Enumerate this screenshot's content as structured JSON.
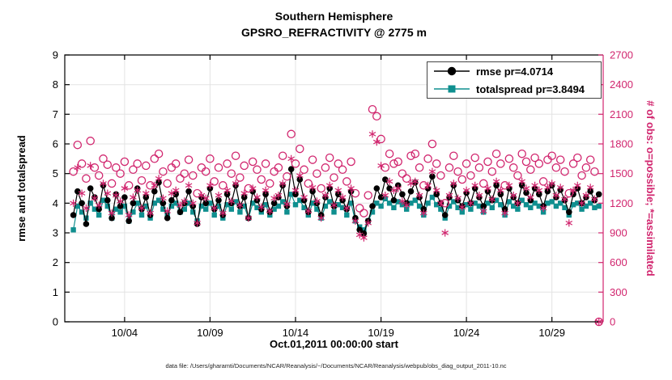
{
  "footer": {
    "text": "data file: /Users/gharamti/Documents/NCAR/Reanalysis/~/Documents/NCAR/Reanalysis/webpub/obs_diag_output_2011-10.nc"
  },
  "chart_data": {
    "type": "scatter",
    "title": "Southern Hemisphere",
    "subtitle": "GPSRO_REFRACTIVITY @ 2775 m",
    "xlabel": "Oct.01,2011 00:00:00 start",
    "ylabel_left": "rmse and totalspread",
    "ylabel_right": "# of obs: o=possible; *=assimilated",
    "grid": true,
    "legend_position": "top-right-inside",
    "x_min_day": 0.5,
    "x_max_day": 32,
    "x_ticks": [
      {
        "day": 4,
        "label": "10/04"
      },
      {
        "day": 9,
        "label": "10/09"
      },
      {
        "day": 14,
        "label": "10/14"
      },
      {
        "day": 19,
        "label": "10/19"
      },
      {
        "day": 24,
        "label": "10/24"
      },
      {
        "day": 29,
        "label": "10/29"
      }
    ],
    "yleft": {
      "min": 0,
      "max": 9,
      "ticks": [
        0,
        1,
        2,
        3,
        4,
        5,
        6,
        7,
        8,
        9
      ]
    },
    "yright": {
      "min": 0,
      "max": 2700,
      "ticks": [
        0,
        300,
        600,
        900,
        1200,
        1500,
        1800,
        2100,
        2400,
        2700
      ]
    },
    "colors": {
      "rmse": "#000000",
      "totalspread": "#0f8f8f",
      "obs": "#d1256e",
      "grid": "#e3e3e3",
      "axis": "#000000"
    },
    "legend": [
      {
        "label": "rmse pr=4.0714",
        "marker": "filled-circle"
      },
      {
        "label": "totalspread pr=3.8494",
        "marker": "filled-square"
      }
    ],
    "series": {
      "t_start": 1.0,
      "t_step": 0.25,
      "rmse": [
        3.6,
        4.4,
        4.0,
        3.3,
        4.5,
        4.2,
        3.8,
        4.6,
        4.1,
        3.5,
        4.3,
        3.9,
        4.2,
        3.4,
        4.0,
        4.5,
        3.8,
        4.2,
        3.6,
        4.4,
        4.7,
        4.0,
        3.5,
        4.1,
        4.3,
        3.7,
        4.0,
        4.4,
        3.9,
        3.3,
        4.2,
        4.0,
        4.5,
        3.8,
        4.1,
        3.6,
        4.3,
        4.0,
        4.6,
        3.9,
        4.2,
        3.5,
        4.4,
        4.1,
        3.8,
        4.3,
        3.7,
        4.0,
        4.2,
        4.6,
        3.9,
        5.15,
        4.3,
        4.8,
        4.1,
        3.7,
        4.4,
        4.0,
        3.6,
        4.2,
        4.5,
        3.9,
        4.3,
        4.1,
        3.8,
        4.4,
        3.5,
        3.1,
        2.98,
        3.4,
        3.9,
        4.5,
        4.2,
        4.8,
        4.5,
        4.1,
        4.6,
        4.3,
        4.0,
        4.4,
        4.7,
        4.2,
        3.8,
        4.5,
        4.9,
        4.3,
        4.0,
        3.6,
        4.2,
        4.6,
        4.1,
        3.9,
        4.35,
        4.0,
        4.5,
        4.2,
        3.9,
        4.4,
        4.1,
        4.6,
        4.3,
        3.8,
        4.5,
        4.2,
        4.0,
        4.6,
        4.35,
        4.1,
        4.5,
        4.3,
        3.9,
        4.4,
        4.6,
        4.2,
        4.45,
        4.1,
        3.7,
        4.3,
        4.5,
        4.0,
        4.2,
        4.4,
        4.1,
        4.3
      ],
      "totalspread": [
        3.1,
        3.9,
        3.7,
        3.5,
        4.0,
        3.8,
        3.6,
        4.1,
        3.9,
        3.5,
        3.8,
        3.7,
        3.9,
        3.4,
        3.7,
        4.0,
        3.6,
        3.9,
        3.5,
        4.0,
        4.1,
        3.8,
        3.6,
        3.9,
        4.0,
        3.7,
        3.8,
        4.0,
        3.7,
        3.4,
        3.9,
        3.8,
        4.0,
        3.6,
        3.9,
        3.5,
        3.95,
        3.8,
        4.05,
        3.7,
        3.9,
        3.5,
        4.0,
        3.85,
        3.7,
        3.95,
        3.6,
        3.8,
        3.9,
        4.05,
        3.7,
        4.3,
        3.95,
        4.1,
        3.85,
        3.6,
        4.0,
        3.8,
        3.5,
        3.9,
        4.05,
        3.7,
        3.95,
        3.85,
        3.6,
        4.0,
        3.4,
        3.2,
        3.1,
        3.4,
        3.7,
        4.0,
        3.9,
        4.15,
        4.0,
        3.85,
        4.05,
        3.95,
        3.8,
        4.0,
        4.1,
        3.9,
        3.6,
        4.0,
        4.2,
        3.95,
        3.8,
        3.5,
        3.9,
        4.05,
        3.85,
        3.7,
        3.95,
        3.8,
        4.0,
        3.9,
        3.7,
        4.0,
        3.85,
        4.1,
        3.95,
        3.6,
        4.05,
        3.9,
        3.8,
        4.1,
        3.95,
        3.85,
        4.0,
        3.9,
        3.7,
        4.0,
        4.05,
        3.9,
        4.0,
        3.85,
        3.6,
        3.95,
        4.0,
        3.8,
        3.9,
        4.0,
        3.85,
        3.9
      ],
      "possible": [
        1520,
        1790,
        1600,
        1450,
        1830,
        1560,
        1480,
        1650,
        1590,
        1400,
        1560,
        1500,
        1620,
        1380,
        1540,
        1600,
        1430,
        1580,
        1380,
        1650,
        1700,
        1520,
        1400,
        1560,
        1600,
        1450,
        1500,
        1640,
        1480,
        1300,
        1560,
        1520,
        1650,
        1420,
        1560,
        1380,
        1600,
        1500,
        1680,
        1460,
        1580,
        1350,
        1620,
        1540,
        1440,
        1600,
        1400,
        1520,
        1560,
        1680,
        1470,
        1900,
        1600,
        1750,
        1540,
        1400,
        1640,
        1500,
        1350,
        1560,
        1660,
        1460,
        1600,
        1540,
        1420,
        1620,
        1300,
        1150,
        1100,
        1280,
        2150,
        2080,
        1850,
        1560,
        1700,
        1600,
        1620,
        1500,
        1450,
        1680,
        1700,
        1560,
        1380,
        1650,
        1800,
        1600,
        1480,
        1200,
        1560,
        1680,
        1520,
        1440,
        1600,
        1480,
        1660,
        1560,
        1400,
        1620,
        1520,
        1700,
        1600,
        1380,
        1650,
        1560,
        1480,
        1700,
        1620,
        1540,
        1660,
        1600,
        1420,
        1640,
        1680,
        1560,
        1640,
        1520,
        1300,
        1600,
        1660,
        1480,
        1560,
        1640,
        1520,
        0
      ],
      "assimilated": [
        1200,
        1560,
        1300,
        1150,
        1580,
        1250,
        1180,
        1400,
        1300,
        1100,
        1280,
        1220,
        1350,
        1080,
        1260,
        1330,
        1150,
        1300,
        1100,
        1380,
        1450,
        1250,
        1120,
        1300,
        1330,
        1180,
        1220,
        1380,
        1200,
        1000,
        1280,
        1250,
        1380,
        1150,
        1280,
        1100,
        1330,
        1220,
        1400,
        1180,
        1300,
        1050,
        1350,
        1260,
        1160,
        1330,
        1120,
        1250,
        1280,
        1400,
        1190,
        1650,
        1330,
        1480,
        1260,
        1120,
        1360,
        1220,
        1050,
        1280,
        1380,
        1180,
        1330,
        1260,
        1150,
        1350,
        1020,
        880,
        850,
        1000,
        1900,
        1820,
        1580,
        1280,
        1420,
        1330,
        1350,
        1220,
        1180,
        1400,
        1420,
        1280,
        1100,
        1380,
        1520,
        1330,
        1200,
        900,
        1280,
        1400,
        1250,
        1160,
        1330,
        1200,
        1380,
        1280,
        1120,
        1350,
        1240,
        1420,
        1330,
        1100,
        1380,
        1280,
        1200,
        1420,
        1350,
        1260,
        1380,
        1330,
        1150,
        1360,
        1400,
        1280,
        1360,
        1240,
        1000,
        1330,
        1380,
        1200,
        1280,
        1360,
        1240,
        0
      ]
    }
  }
}
